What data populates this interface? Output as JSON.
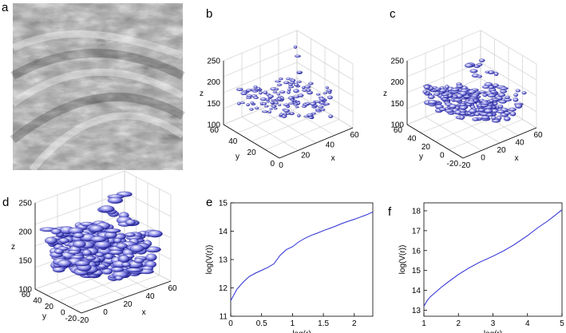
{
  "panel_letters": [
    "a",
    "b",
    "c",
    "d",
    "e",
    "f"
  ],
  "colors": {
    "line": "#2b2bd6",
    "blob_fill": "#8a8ae8",
    "blob_stroke": "#1a1a8c",
    "axis": "#000000",
    "grid": "#c8c8c8"
  },
  "chart_data": [
    {
      "panel": "a",
      "type": "image",
      "description_hidden": true
    },
    {
      "panel": "b",
      "type": "scatter3d",
      "xlabel": "x",
      "ylabel": "y",
      "zlabel": "z",
      "x_ticks": [
        "0",
        "20",
        "40",
        "60"
      ],
      "y_ticks": [
        "0",
        "20",
        "40",
        "60"
      ],
      "z_ticks": [
        "100",
        "150",
        "200",
        "250"
      ],
      "xlim": [
        0,
        60
      ],
      "ylim": [
        0,
        60
      ],
      "zlim": [
        100,
        250
      ],
      "grid": true
    },
    {
      "panel": "c",
      "type": "scatter3d",
      "xlabel": "x",
      "ylabel": "y",
      "zlabel": "z",
      "x_ticks": [
        "-20",
        "0",
        "20",
        "40",
        "60"
      ],
      "y_ticks": [
        "-20",
        "0",
        "20",
        "40",
        "60"
      ],
      "z_ticks": [
        "100",
        "150",
        "200",
        "250"
      ],
      "xlim": [
        -20,
        60
      ],
      "ylim": [
        -20,
        60
      ],
      "zlim": [
        100,
        250
      ],
      "grid": true
    },
    {
      "panel": "d",
      "type": "scatter3d",
      "xlabel": "x",
      "ylabel": "y",
      "zlabel": "z",
      "x_ticks": [
        "-20",
        "0",
        "20",
        "40",
        "60"
      ],
      "y_ticks": [
        "-20",
        "0",
        "20",
        "40",
        "60"
      ],
      "z_ticks": [
        "100",
        "150",
        "200",
        "250"
      ],
      "xlim": [
        -20,
        60
      ],
      "ylim": [
        -20,
        60
      ],
      "zlim": [
        100,
        250
      ],
      "grid": true
    },
    {
      "panel": "e",
      "type": "line",
      "xlabel": "log(r)",
      "ylabel": "log(V(r))",
      "xlim": [
        0,
        2.3
      ],
      "ylim": [
        11,
        15
      ],
      "x_ticks": [
        0,
        0.5,
        1,
        1.5,
        2
      ],
      "x_tick_labels": [
        "0",
        "0.5",
        "1",
        "1.5",
        "2"
      ],
      "y_ticks": [
        11,
        12,
        13,
        14,
        15
      ],
      "y_tick_labels": [
        "11",
        "12",
        "13",
        "14",
        "15"
      ],
      "x": [
        0,
        0.1,
        0.2,
        0.3,
        0.4,
        0.5,
        0.6,
        0.7,
        0.8,
        0.9,
        1.0,
        1.1,
        1.2,
        1.3,
        1.4,
        1.5,
        1.6,
        1.7,
        1.8,
        1.9,
        2.0,
        2.1,
        2.2,
        2.3
      ],
      "y": [
        11.55,
        11.95,
        12.2,
        12.4,
        12.52,
        12.62,
        12.72,
        12.85,
        13.15,
        13.35,
        13.45,
        13.62,
        13.75,
        13.85,
        13.93,
        14.02,
        14.1,
        14.18,
        14.27,
        14.35,
        14.42,
        14.5,
        14.58,
        14.68
      ],
      "grid": false
    },
    {
      "panel": "f",
      "type": "line",
      "xlabel": "log(r)",
      "ylabel": "log(V(r))",
      "xlim": [
        1,
        5
      ],
      "ylim": [
        12.7,
        18.4
      ],
      "x_ticks": [
        1,
        2,
        3,
        4,
        5
      ],
      "x_tick_labels": [
        "1",
        "2",
        "3",
        "4",
        "5"
      ],
      "y_ticks": [
        13,
        14,
        15,
        16,
        17,
        18
      ],
      "y_tick_labels": [
        "13",
        "14",
        "15",
        "16",
        "17",
        "18"
      ],
      "x": [
        1.0,
        1.1,
        1.2,
        1.3,
        1.5,
        1.7,
        2.0,
        2.3,
        2.6,
        3.0,
        3.3,
        3.6,
        4.0,
        4.3,
        4.6,
        5.0
      ],
      "y": [
        13.2,
        13.5,
        13.7,
        13.85,
        14.15,
        14.42,
        14.8,
        15.12,
        15.4,
        15.72,
        15.98,
        16.28,
        16.75,
        17.15,
        17.5,
        18.05
      ],
      "grid": false
    }
  ]
}
